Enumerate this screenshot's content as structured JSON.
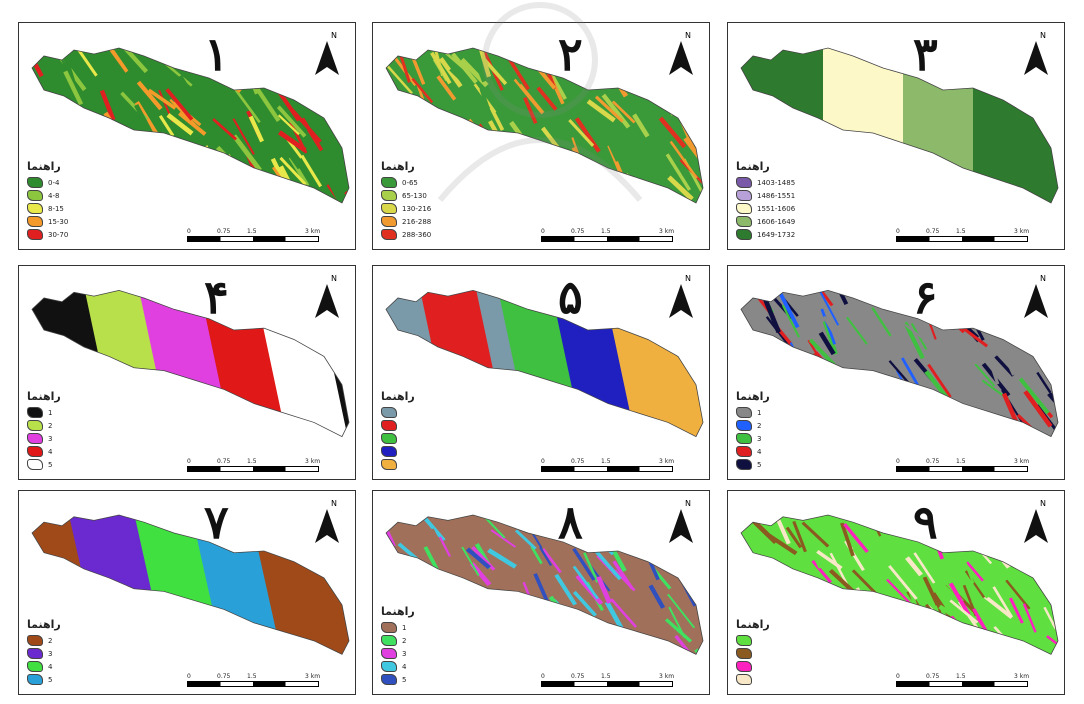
{
  "legend_title": "راهنما",
  "north_label": "N",
  "panels": [
    {
      "number": "۱",
      "legend": [
        "0-4",
        "4-8",
        "8-15",
        "15-30",
        "30-70"
      ],
      "colors": [
        "#2e8b2e",
        "#8cc63f",
        "#e8e84a",
        "#f39a2a",
        "#e02020"
      ],
      "scale": [
        "0",
        "0.75",
        "1.5",
        "3 km"
      ]
    },
    {
      "number": "۲",
      "legend": [
        "0-65",
        "65-130",
        "130-216",
        "216-288",
        "288-360"
      ],
      "colors": [
        "#3a9a3a",
        "#a8d04a",
        "#d8d84a",
        "#f09a30",
        "#e03020"
      ],
      "scale": [
        "0",
        "0.75",
        "1.5",
        "3 km"
      ]
    },
    {
      "number": "۳",
      "legend": [
        "1403-1485",
        "1486-1551",
        "1551-1606",
        "1606-1649",
        "1649-1732"
      ],
      "colors": [
        "#7a5aa8",
        "#b8a0d8",
        "#fdf8c8",
        "#8cba6a",
        "#2e7a2e"
      ],
      "scale": [
        "0",
        "0.75",
        "1.5",
        "3 km"
      ]
    },
    {
      "number": "۴",
      "legend": [
        "1",
        "2",
        "3",
        "4",
        "5"
      ],
      "colors": [
        "#111111",
        "#b8e04a",
        "#e040e0",
        "#e01818",
        "#ffffff"
      ],
      "scale": [
        "0",
        "0.75",
        "1.5",
        "3 km"
      ]
    },
    {
      "number": "۵",
      "legend": [
        "",
        "",
        "",
        "",
        ""
      ],
      "colors": [
        "#7a9aaa",
        "#e02020",
        "#40c040",
        "#2020c0",
        "#f0b040"
      ],
      "scale": [
        "0",
        "0.75",
        "1.5",
        "3 km"
      ]
    },
    {
      "number": "۶",
      "legend": [
        "1",
        "2",
        "3",
        "4",
        "5"
      ],
      "colors": [
        "#888888",
        "#2060ff",
        "#40c040",
        "#e02020",
        "#101040"
      ],
      "scale": [
        "0",
        "0.75",
        "1.5",
        "3 km"
      ]
    },
    {
      "number": "۷",
      "legend": [
        "2",
        "3",
        "4",
        "5"
      ],
      "colors": [
        "#a04a1a",
        "#6a2ad0",
        "#40e040",
        "#2aa0d8"
      ],
      "scale": [
        "0",
        "0.75",
        "1.5",
        "3 km"
      ]
    },
    {
      "number": "۸",
      "legend": [
        "1",
        "2",
        "3",
        "4",
        "5"
      ],
      "colors": [
        "#a0705a",
        "#40e060",
        "#e040e0",
        "#40c8e0",
        "#3050c0"
      ],
      "scale": [
        "0",
        "0.75",
        "1.5",
        "3 km"
      ]
    },
    {
      "number": "۹",
      "legend": [
        "",
        "",
        "",
        ""
      ],
      "colors": [
        "#60e040",
        "#8a5a20",
        "#ff20c0",
        "#f8e8c8"
      ],
      "scale": [
        "0",
        "0.75",
        "1.5",
        "3 km"
      ]
    }
  ]
}
